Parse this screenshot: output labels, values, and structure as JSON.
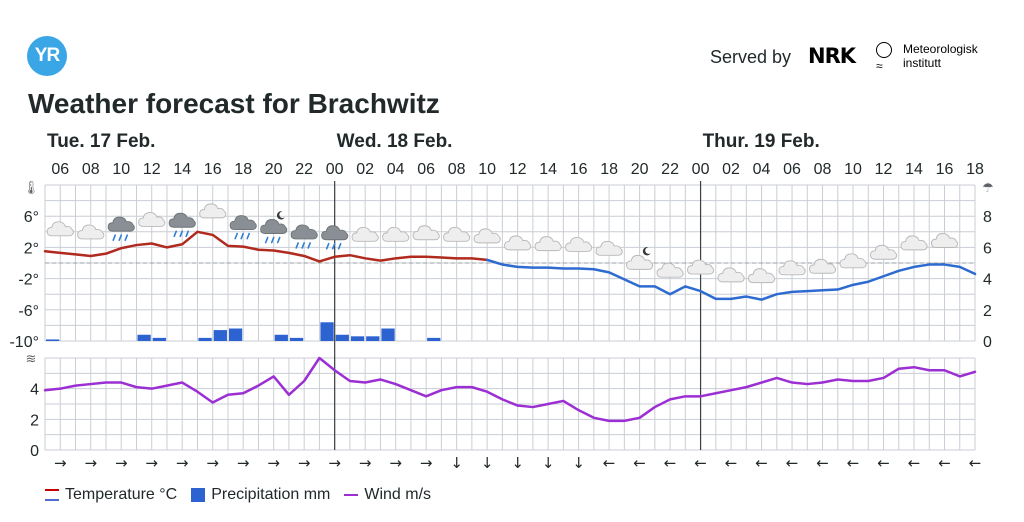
{
  "header": {
    "logo_text": "YR",
    "served_by": "Served by",
    "nrk_label": "NRK",
    "met_label_line1": "Meteorologisk",
    "met_label_line2": "institutt",
    "met_wave": "≈"
  },
  "title": "Weather forecast for Brachwitz",
  "legend": {
    "temperature": "Temperature °C",
    "precipitation": "Precipitation mm",
    "wind": "Wind m/s"
  },
  "colors": {
    "temp_warm": "#b02a1e",
    "temp_cold": "#2e6bd0",
    "precip": "#2d62d1",
    "wind": "#9b2fd3",
    "grid": "#c9ced4",
    "logo": "#3aa6e6"
  },
  "chart_data": {
    "type": "line",
    "title": "Weather forecast for Brachwitz",
    "days": [
      "Tue. 17 Feb.",
      "Wed. 18 Feb.",
      "Thur. 19 Feb."
    ],
    "day_start_hours": [
      5,
      24,
      48
    ],
    "x_hour_start": 5,
    "x_hour_end": 66,
    "hour_tick_labels": [
      "06",
      "08",
      "10",
      "12",
      "14",
      "16",
      "18",
      "20",
      "22",
      "00",
      "02",
      "04",
      "06",
      "08",
      "10",
      "12",
      "14",
      "16",
      "18",
      "20",
      "22",
      "00",
      "02",
      "04",
      "06",
      "08",
      "10",
      "12",
      "14",
      "16",
      "18"
    ],
    "temperature": {
      "name": "Temperature °C",
      "ylim": [
        -10,
        10
      ],
      "ticks": [
        6,
        2,
        -2,
        -6,
        -10
      ],
      "tick_labels": [
        "6°",
        "2°",
        "-2°",
        "-6°",
        "-10°"
      ],
      "hours": [
        5,
        6,
        7,
        8,
        9,
        10,
        11,
        12,
        13,
        14,
        15,
        16,
        17,
        18,
        19,
        20,
        21,
        22,
        23,
        24,
        25,
        26,
        27,
        28,
        29,
        30,
        31,
        32,
        33,
        34,
        35,
        36,
        37,
        38,
        39,
        40,
        41,
        42,
        43,
        44,
        45,
        46,
        47,
        48,
        49,
        50,
        51,
        52,
        53,
        54,
        55,
        56,
        57,
        58,
        59,
        60,
        61,
        62,
        63,
        64,
        65,
        66
      ],
      "values": [
        1.5,
        1.3,
        1.1,
        0.9,
        1.2,
        1.9,
        2.3,
        2.5,
        2.0,
        2.4,
        4.0,
        3.6,
        2.2,
        2.1,
        1.7,
        1.6,
        1.3,
        0.9,
        0.2,
        0.8,
        1.0,
        0.6,
        0.3,
        0.6,
        0.8,
        0.8,
        0.7,
        0.6,
        0.6,
        0.4,
        -0.2,
        -0.5,
        -0.6,
        -0.6,
        -0.7,
        -0.7,
        -0.8,
        -1.2,
        -2.1,
        -3.0,
        -3.0,
        -4.0,
        -3.0,
        -3.6,
        -4.6,
        -4.6,
        -4.3,
        -4.7,
        -4.0,
        -3.7,
        -3.6,
        -3.5,
        -3.4,
        -2.8,
        -2.4,
        -1.7,
        -1.0,
        -0.5,
        -0.2,
        -0.2,
        -0.5,
        -1.4
      ]
    },
    "precipitation": {
      "name": "Precipitation mm",
      "ylim": [
        0,
        10
      ],
      "ticks": [
        8,
        6,
        4,
        2,
        0
      ],
      "tick_labels": [
        "8",
        "6",
        "4",
        "2",
        "0"
      ],
      "values": [
        0.1,
        0,
        0,
        0,
        0,
        0,
        0.4,
        0.2,
        0,
        0,
        0.2,
        0.7,
        0.8,
        0,
        0,
        0.4,
        0.2,
        0,
        1.2,
        0.4,
        0.3,
        0.3,
        0.8,
        0,
        0,
        0.2,
        0,
        0,
        0,
        0,
        0,
        0,
        0,
        0,
        0,
        0,
        0,
        0,
        0,
        0,
        0,
        0,
        0,
        0,
        0,
        0,
        0,
        0,
        0,
        0,
        0,
        0,
        0,
        0,
        0,
        0,
        0,
        0,
        0,
        0,
        0
      ]
    },
    "wind": {
      "name": "Wind m/s",
      "ylim": [
        0,
        6
      ],
      "ticks": [
        4,
        2,
        0
      ],
      "tick_labels": [
        "4",
        "2",
        "0"
      ],
      "hours": [
        5,
        6,
        7,
        8,
        9,
        10,
        11,
        12,
        13,
        14,
        15,
        16,
        17,
        18,
        19,
        20,
        21,
        22,
        23,
        24,
        25,
        26,
        27,
        28,
        29,
        30,
        31,
        32,
        33,
        34,
        35,
        36,
        37,
        38,
        39,
        40,
        41,
        42,
        43,
        44,
        45,
        46,
        47,
        48,
        49,
        50,
        51,
        52,
        53,
        54,
        55,
        56,
        57,
        58,
        59,
        60,
        61,
        62,
        63,
        64,
        65,
        66
      ],
      "values": [
        3.9,
        4.0,
        4.2,
        4.3,
        4.4,
        4.4,
        4.1,
        4.0,
        4.2,
        4.4,
        3.8,
        3.1,
        3.6,
        3.7,
        4.2,
        4.8,
        3.6,
        4.5,
        6.0,
        5.2,
        4.5,
        4.4,
        4.6,
        4.3,
        3.9,
        3.5,
        3.9,
        4.1,
        4.1,
        3.8,
        3.3,
        2.9,
        2.8,
        3.0,
        3.2,
        2.6,
        2.1,
        1.9,
        1.9,
        2.1,
        2.8,
        3.3,
        3.5,
        3.5,
        3.7,
        3.9,
        4.1,
        4.4,
        4.7,
        4.4,
        4.3,
        4.4,
        4.6,
        4.5,
        4.5,
        4.7,
        5.3,
        5.4,
        5.2,
        5.2,
        4.8,
        5.1
      ]
    },
    "wind_direction_arrows": [
      "→",
      "→",
      "→",
      "→",
      "→",
      "→",
      "→",
      "→",
      "→",
      "→",
      "→",
      "→",
      "→",
      "↓",
      "↓",
      "↓",
      "↓",
      "↓",
      "←",
      "←",
      "←",
      "←",
      "←",
      "←",
      "←",
      "←",
      "←",
      "←",
      "←",
      "←",
      "←"
    ],
    "weather_symbols": [
      "cloud",
      "cloud",
      "cloud-rain",
      "cloud",
      "cloud-rain",
      "cloud",
      "cloud-rain",
      "night-cloud-rain",
      "cloud-rain",
      "cloud-rain",
      "cloud",
      "cloud",
      "cloud",
      "cloud",
      "cloud",
      "cloud",
      "cloud",
      "cloud",
      "cloud",
      "night-cloud",
      "cloud",
      "cloud",
      "cloud",
      "cloud",
      "cloud",
      "cloud",
      "cloud",
      "cloud",
      "cloud",
      "cloud"
    ]
  }
}
